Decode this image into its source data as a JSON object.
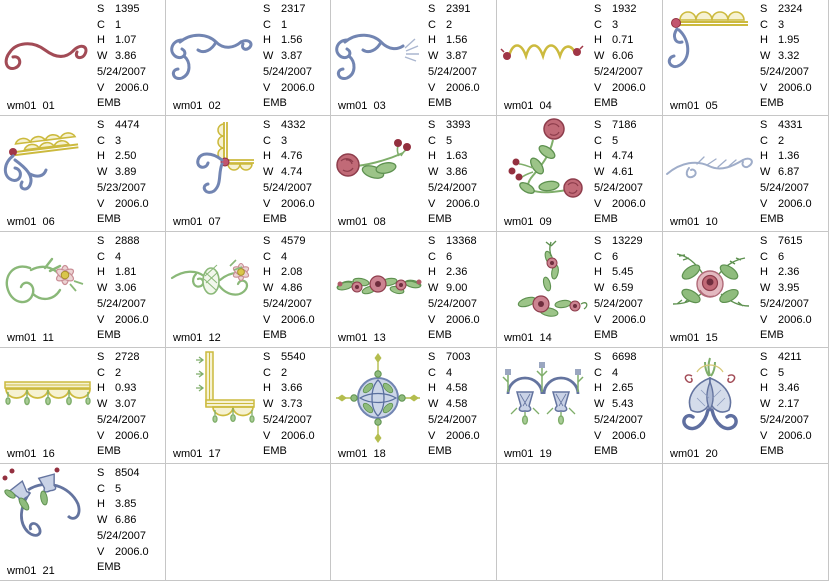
{
  "grid": {
    "columns": 5,
    "rows": 5,
    "filled_cells": 21,
    "empty_cells": 4,
    "border_color": "#c6c6c6",
    "background": "#ffffff"
  },
  "labels": {
    "stitches": "S",
    "colors": "C",
    "height": "H",
    "width": "W",
    "version": "V"
  },
  "cells": [
    {
      "id": "wm01  01",
      "design": "red-scroll",
      "stitches": "1395",
      "colors": "1",
      "height": "1.07",
      "width": "3.86",
      "date": "5/24/2007",
      "version": "2006.0",
      "format": "EMB"
    },
    {
      "id": "wm01  02",
      "design": "blue-scroll",
      "stitches": "2317",
      "colors": "1",
      "height": "1.56",
      "width": "3.87",
      "date": "5/24/2007",
      "version": "2006.0",
      "format": "EMB"
    },
    {
      "id": "wm01  03",
      "design": "blue-scroll-shell",
      "stitches": "2391",
      "colors": "2",
      "height": "1.56",
      "width": "3.87",
      "date": "5/24/2007",
      "version": "2006.0",
      "format": "EMB"
    },
    {
      "id": "wm01  04",
      "design": "yellow-wave-rosebuds",
      "stitches": "1932",
      "colors": "3",
      "height": "0.71",
      "width": "6.06",
      "date": "5/24/2007",
      "version": "2006.0",
      "format": "EMB"
    },
    {
      "id": "wm01  05",
      "design": "yellow-scallop-blue-scroll",
      "stitches": "2324",
      "colors": "3",
      "height": "1.95",
      "width": "3.32",
      "date": "5/24/2007",
      "version": "2006.0",
      "format": "EMB"
    },
    {
      "id": "wm01  06",
      "design": "yellow-double-scallop-blue-scroll",
      "stitches": "4474",
      "colors": "3",
      "height": "2.50",
      "width": "3.89",
      "date": "5/23/2007",
      "version": "2006.0",
      "format": "EMB"
    },
    {
      "id": "wm01  07",
      "design": "yellow-corner-scallop-blue-scroll",
      "stitches": "4332",
      "colors": "3",
      "height": "4.76",
      "width": "4.74",
      "date": "5/24/2007",
      "version": "2006.0",
      "format": "EMB"
    },
    {
      "id": "wm01  08",
      "design": "rose-berry-spray",
      "stitches": "3393",
      "colors": "5",
      "height": "1.63",
      "width": "3.86",
      "date": "5/24/2007",
      "version": "2006.0",
      "format": "EMB"
    },
    {
      "id": "wm01  09",
      "design": "rose-berry-corner",
      "stitches": "7186",
      "colors": "5",
      "height": "4.74",
      "width": "4.61",
      "date": "5/24/2007",
      "version": "2006.0",
      "format": "EMB"
    },
    {
      "id": "wm01  10",
      "design": "lightblue-flourish",
      "stitches": "4331",
      "colors": "2",
      "height": "1.36",
      "width": "6.87",
      "date": "5/24/2007",
      "version": "2006.0",
      "format": "EMB"
    },
    {
      "id": "wm01  11",
      "design": "green-scroll-daisy",
      "stitches": "2888",
      "colors": "4",
      "height": "1.81",
      "width": "3.06",
      "date": "5/24/2007",
      "version": "2006.0",
      "format": "EMB"
    },
    {
      "id": "wm01  12",
      "design": "green-scroll-daisy-wide",
      "stitches": "4579",
      "colors": "4",
      "height": "2.08",
      "width": "4.86",
      "date": "5/24/2007",
      "version": "2006.0",
      "format": "EMB"
    },
    {
      "id": "wm01  13",
      "design": "rose-garland",
      "stitches": "13368",
      "colors": "6",
      "height": "2.36",
      "width": "9.00",
      "date": "5/24/2007",
      "version": "2006.0",
      "format": "EMB"
    },
    {
      "id": "wm01  14",
      "design": "rose-garland-corner",
      "stitches": "13229",
      "colors": "6",
      "height": "5.45",
      "width": "6.59",
      "date": "5/24/2007",
      "version": "2006.0",
      "format": "EMB"
    },
    {
      "id": "wm01  15",
      "design": "rose-bouquet",
      "stitches": "7615",
      "colors": "6",
      "height": "2.36",
      "width": "3.95",
      "date": "5/24/2007",
      "version": "2006.0",
      "format": "EMB"
    },
    {
      "id": "wm01  16",
      "design": "gold-fringe-border",
      "stitches": "2728",
      "colors": "2",
      "height": "0.93",
      "width": "3.07",
      "date": "5/24/2007",
      "version": "2006.0",
      "format": "EMB"
    },
    {
      "id": "wm01  17",
      "design": "gold-fringe-corner",
      "stitches": "5540",
      "colors": "2",
      "height": "3.66",
      "width": "3.73",
      "date": "5/24/2007",
      "version": "2006.0",
      "format": "EMB"
    },
    {
      "id": "wm01  18",
      "design": "blue-green-medallion",
      "stitches": "7003",
      "colors": "4",
      "height": "4.58",
      "width": "4.58",
      "date": "5/24/2007",
      "version": "2006.0",
      "format": "EMB"
    },
    {
      "id": "wm01  19",
      "design": "bellflower-border",
      "stitches": "6698",
      "colors": "4",
      "height": "2.65",
      "width": "5.43",
      "date": "5/24/2007",
      "version": "2006.0",
      "format": "EMB"
    },
    {
      "id": "wm01  20",
      "design": "blue-lily",
      "stitches": "4211",
      "colors": "5",
      "height": "3.46",
      "width": "2.17",
      "date": "5/24/2007",
      "version": "2006.0",
      "format": "EMB"
    },
    {
      "id": "wm01  21",
      "design": "bellflower-corner-spray",
      "stitches": "8504",
      "colors": "5",
      "height": "3.85",
      "width": "6.86",
      "date": "5/24/2007",
      "version": "2006.0",
      "format": "EMB"
    }
  ]
}
